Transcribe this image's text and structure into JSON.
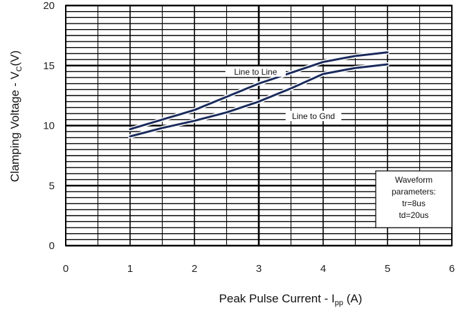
{
  "chart_data": {
    "type": "line",
    "title": "",
    "xlabel": {
      "main": "Peak Pulse Current - I",
      "sub": "pp",
      "unit": " (A)"
    },
    "ylabel": {
      "main": "Clamping Voltage - V",
      "sub": "C",
      "unit": "(V)"
    },
    "xlim": [
      0,
      6
    ],
    "ylim": [
      0,
      20
    ],
    "x_ticks": [
      "0",
      "1",
      "2",
      "3",
      "4",
      "5",
      "6"
    ],
    "y_ticks": [
      "0",
      "5",
      "10",
      "15",
      "20"
    ],
    "grid": true,
    "series": [
      {
        "name": "Line to Line",
        "color": "#1a2b5c",
        "x": [
          1.0,
          1.5,
          2.0,
          2.5,
          3.0,
          3.5,
          4.0,
          4.5,
          5.0
        ],
        "y": [
          9.7,
          10.5,
          11.3,
          12.4,
          13.5,
          14.4,
          15.3,
          15.8,
          16.1
        ]
      },
      {
        "name": "Line to Gnd",
        "color": "#1a2b5c",
        "x": [
          1.0,
          1.5,
          2.0,
          2.5,
          3.0,
          3.5,
          4.0,
          4.5,
          5.0
        ],
        "y": [
          9.1,
          9.8,
          10.4,
          11.1,
          12.0,
          13.1,
          14.3,
          14.8,
          15.1
        ]
      }
    ],
    "annotations": [
      {
        "text": "Line to Line",
        "x": 2.95,
        "y": 14.3
      },
      {
        "text": "Line to Gnd",
        "x": 3.85,
        "y": 10.6
      }
    ],
    "note_lines": [
      "Waveform",
      "parameters:",
      "tr=8us",
      "td=20us"
    ]
  }
}
